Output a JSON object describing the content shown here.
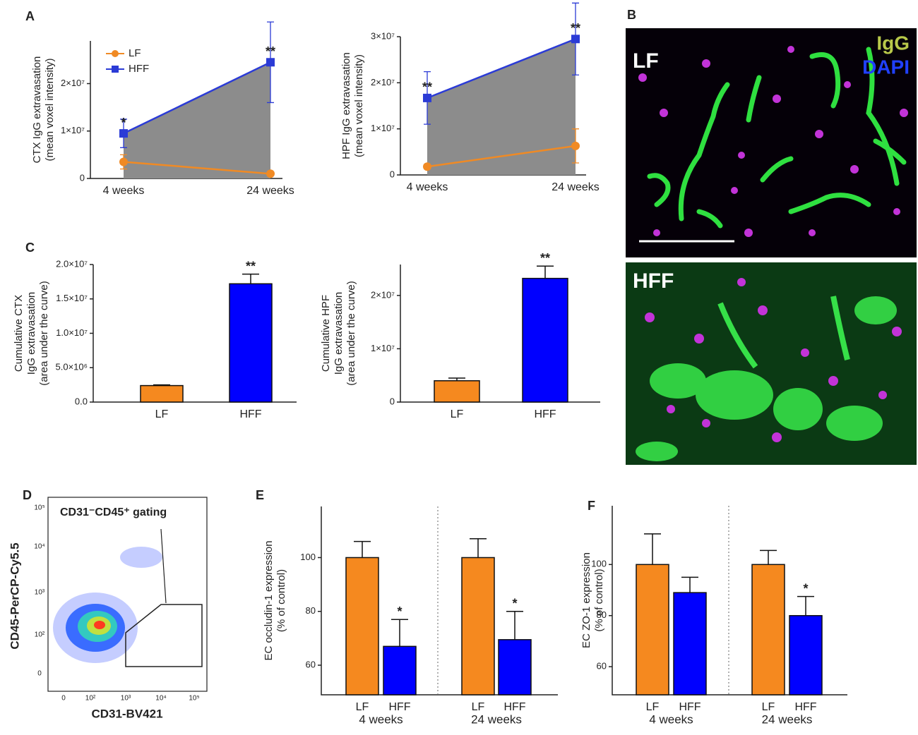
{
  "chart_data": [
    {
      "type": "line",
      "categories": [
        "4 weeks",
        "24 weeks"
      ],
      "ylabel": [
        "CTX IgG extravasation",
        "(mean voxel intensity)"
      ],
      "ylim": [
        0,
        29000000
      ],
      "yticks": [
        0,
        {
          "value": 10000000,
          "label": "1×10⁷"
        },
        {
          "value": 20000000,
          "label": "2×10⁷"
        }
      ],
      "legend": "upper left",
      "fill_between": "#8c8c8c",
      "series": [
        {
          "name": "LF",
          "color": "#f08a24",
          "marker": "circle",
          "values": [
            3500000,
            1000000
          ],
          "errors": [
            1500000,
            200000
          ]
        },
        {
          "name": "HFF",
          "color": "#2b3bd6",
          "marker": "square",
          "values": [
            9500000,
            24500000
          ],
          "errors": [
            3000000,
            8500000
          ],
          "significance": [
            "*",
            "**"
          ]
        }
      ]
    },
    {
      "type": "line",
      "categories": [
        "4 weeks",
        "24 weeks"
      ],
      "ylabel": [
        "HPF IgG extravasation",
        "(mean voxel intensity)"
      ],
      "ylim": [
        0,
        30000000
      ],
      "yticks": [
        0,
        {
          "value": 10000000,
          "label": "1×10⁷"
        },
        {
          "value": 20000000,
          "label": "2×10⁷"
        },
        {
          "value": 30000000,
          "label": "3×10⁷"
        }
      ],
      "fill_between": "#8c8c8c",
      "series": [
        {
          "color": "#f08a24",
          "marker": "circle",
          "values": [
            1800000,
            6300000
          ],
          "errors": [
            500000,
            3700000
          ]
        },
        {
          "color": "#2b3bd6",
          "marker": "square",
          "values": [
            16700000,
            29500000
          ],
          "errors": [
            5700000,
            7800000
          ],
          "significance": [
            "**",
            "**"
          ]
        }
      ]
    },
    {
      "type": "bar",
      "categories": [
        "LF",
        "HFF"
      ],
      "ylabel": [
        "Cumulative CTX",
        "IgG extravasation",
        "(area under the curve)"
      ],
      "ylim": [
        0,
        20000000
      ],
      "yticks": [
        {
          "value": 0,
          "label": "0.0"
        },
        {
          "value": 5000000,
          "label": "5.0×10⁶"
        },
        {
          "value": 10000000,
          "label": "1.0×10⁷"
        },
        {
          "value": 15000000,
          "label": "1.5×10⁷"
        },
        {
          "value": 20000000,
          "label": "2.0×10⁷"
        }
      ],
      "colors": [
        "#f5891f",
        "#0000ff"
      ],
      "values": [
        2400000,
        17200000
      ],
      "errors": [
        100000,
        1400000
      ],
      "significance": [
        null,
        "**"
      ]
    },
    {
      "type": "bar",
      "categories": [
        "LF",
        "HFF"
      ],
      "ylabel": [
        "Cumulative HPF",
        "IgG extravasation",
        "(area under the curve)"
      ],
      "ylim": [
        0,
        25800000
      ],
      "yticks": [
        0,
        {
          "value": 10000000,
          "label": "1×10⁷"
        },
        {
          "value": 20000000,
          "label": "2×10⁷"
        }
      ],
      "colors": [
        "#f5891f",
        "#0000ff"
      ],
      "values": [
        4000000,
        23200000
      ],
      "errors": [
        500000,
        2300000
      ],
      "significance": [
        null,
        "**"
      ]
    },
    {
      "type": "bar",
      "categories": [
        "LF",
        "HFF",
        "LF",
        "HFF"
      ],
      "groups": [
        "4 weeks",
        "24 weeks"
      ],
      "ylabel": [
        "EC occludin-1 expression",
        "(% of control)"
      ],
      "ylim": [
        49,
        119
      ],
      "yticks": [
        60,
        80,
        100
      ],
      "colors": [
        "#f5891f",
        "#0000ff",
        "#f5891f",
        "#0000ff"
      ],
      "values": [
        100,
        67,
        100,
        69.5
      ],
      "errors": [
        6,
        10,
        7,
        10.5
      ],
      "significance": [
        null,
        "*",
        null,
        "*"
      ]
    },
    {
      "type": "bar",
      "categories": [
        "LF",
        "HFF",
        "LF",
        "HFF"
      ],
      "groups": [
        "4 weeks",
        "24 weeks"
      ],
      "ylabel": [
        "EC ZO-1 expression",
        "(% of control)"
      ],
      "ylim": [
        49,
        123
      ],
      "yticks": [
        60,
        80,
        100
      ],
      "colors": [
        "#f5891f",
        "#0000ff",
        "#f5891f",
        "#0000ff"
      ],
      "values": [
        100,
        89,
        100,
        80
      ],
      "errors": [
        12,
        6,
        5.5,
        7.5
      ],
      "significance": [
        null,
        null,
        null,
        "*"
      ]
    }
  ],
  "panel_labels": [
    "A",
    "B",
    "C",
    "D",
    "E",
    "F"
  ],
  "panel_b": {
    "top_label": "LF",
    "bottom_label": "HFF",
    "stain_1": "IgG",
    "stain_2": "DAPI"
  },
  "panel_d": {
    "title": "CD31⁻CD45⁺ gating",
    "xlabel": "CD31-BV421",
    "ylabel": "CD45-PerCP-Cy5.5",
    "xticks": [
      "0",
      "10²",
      "10³",
      "10⁴",
      "10⁵"
    ],
    "yticks": [
      "10⁵",
      "10⁴",
      "10³",
      "10²",
      "0"
    ]
  }
}
